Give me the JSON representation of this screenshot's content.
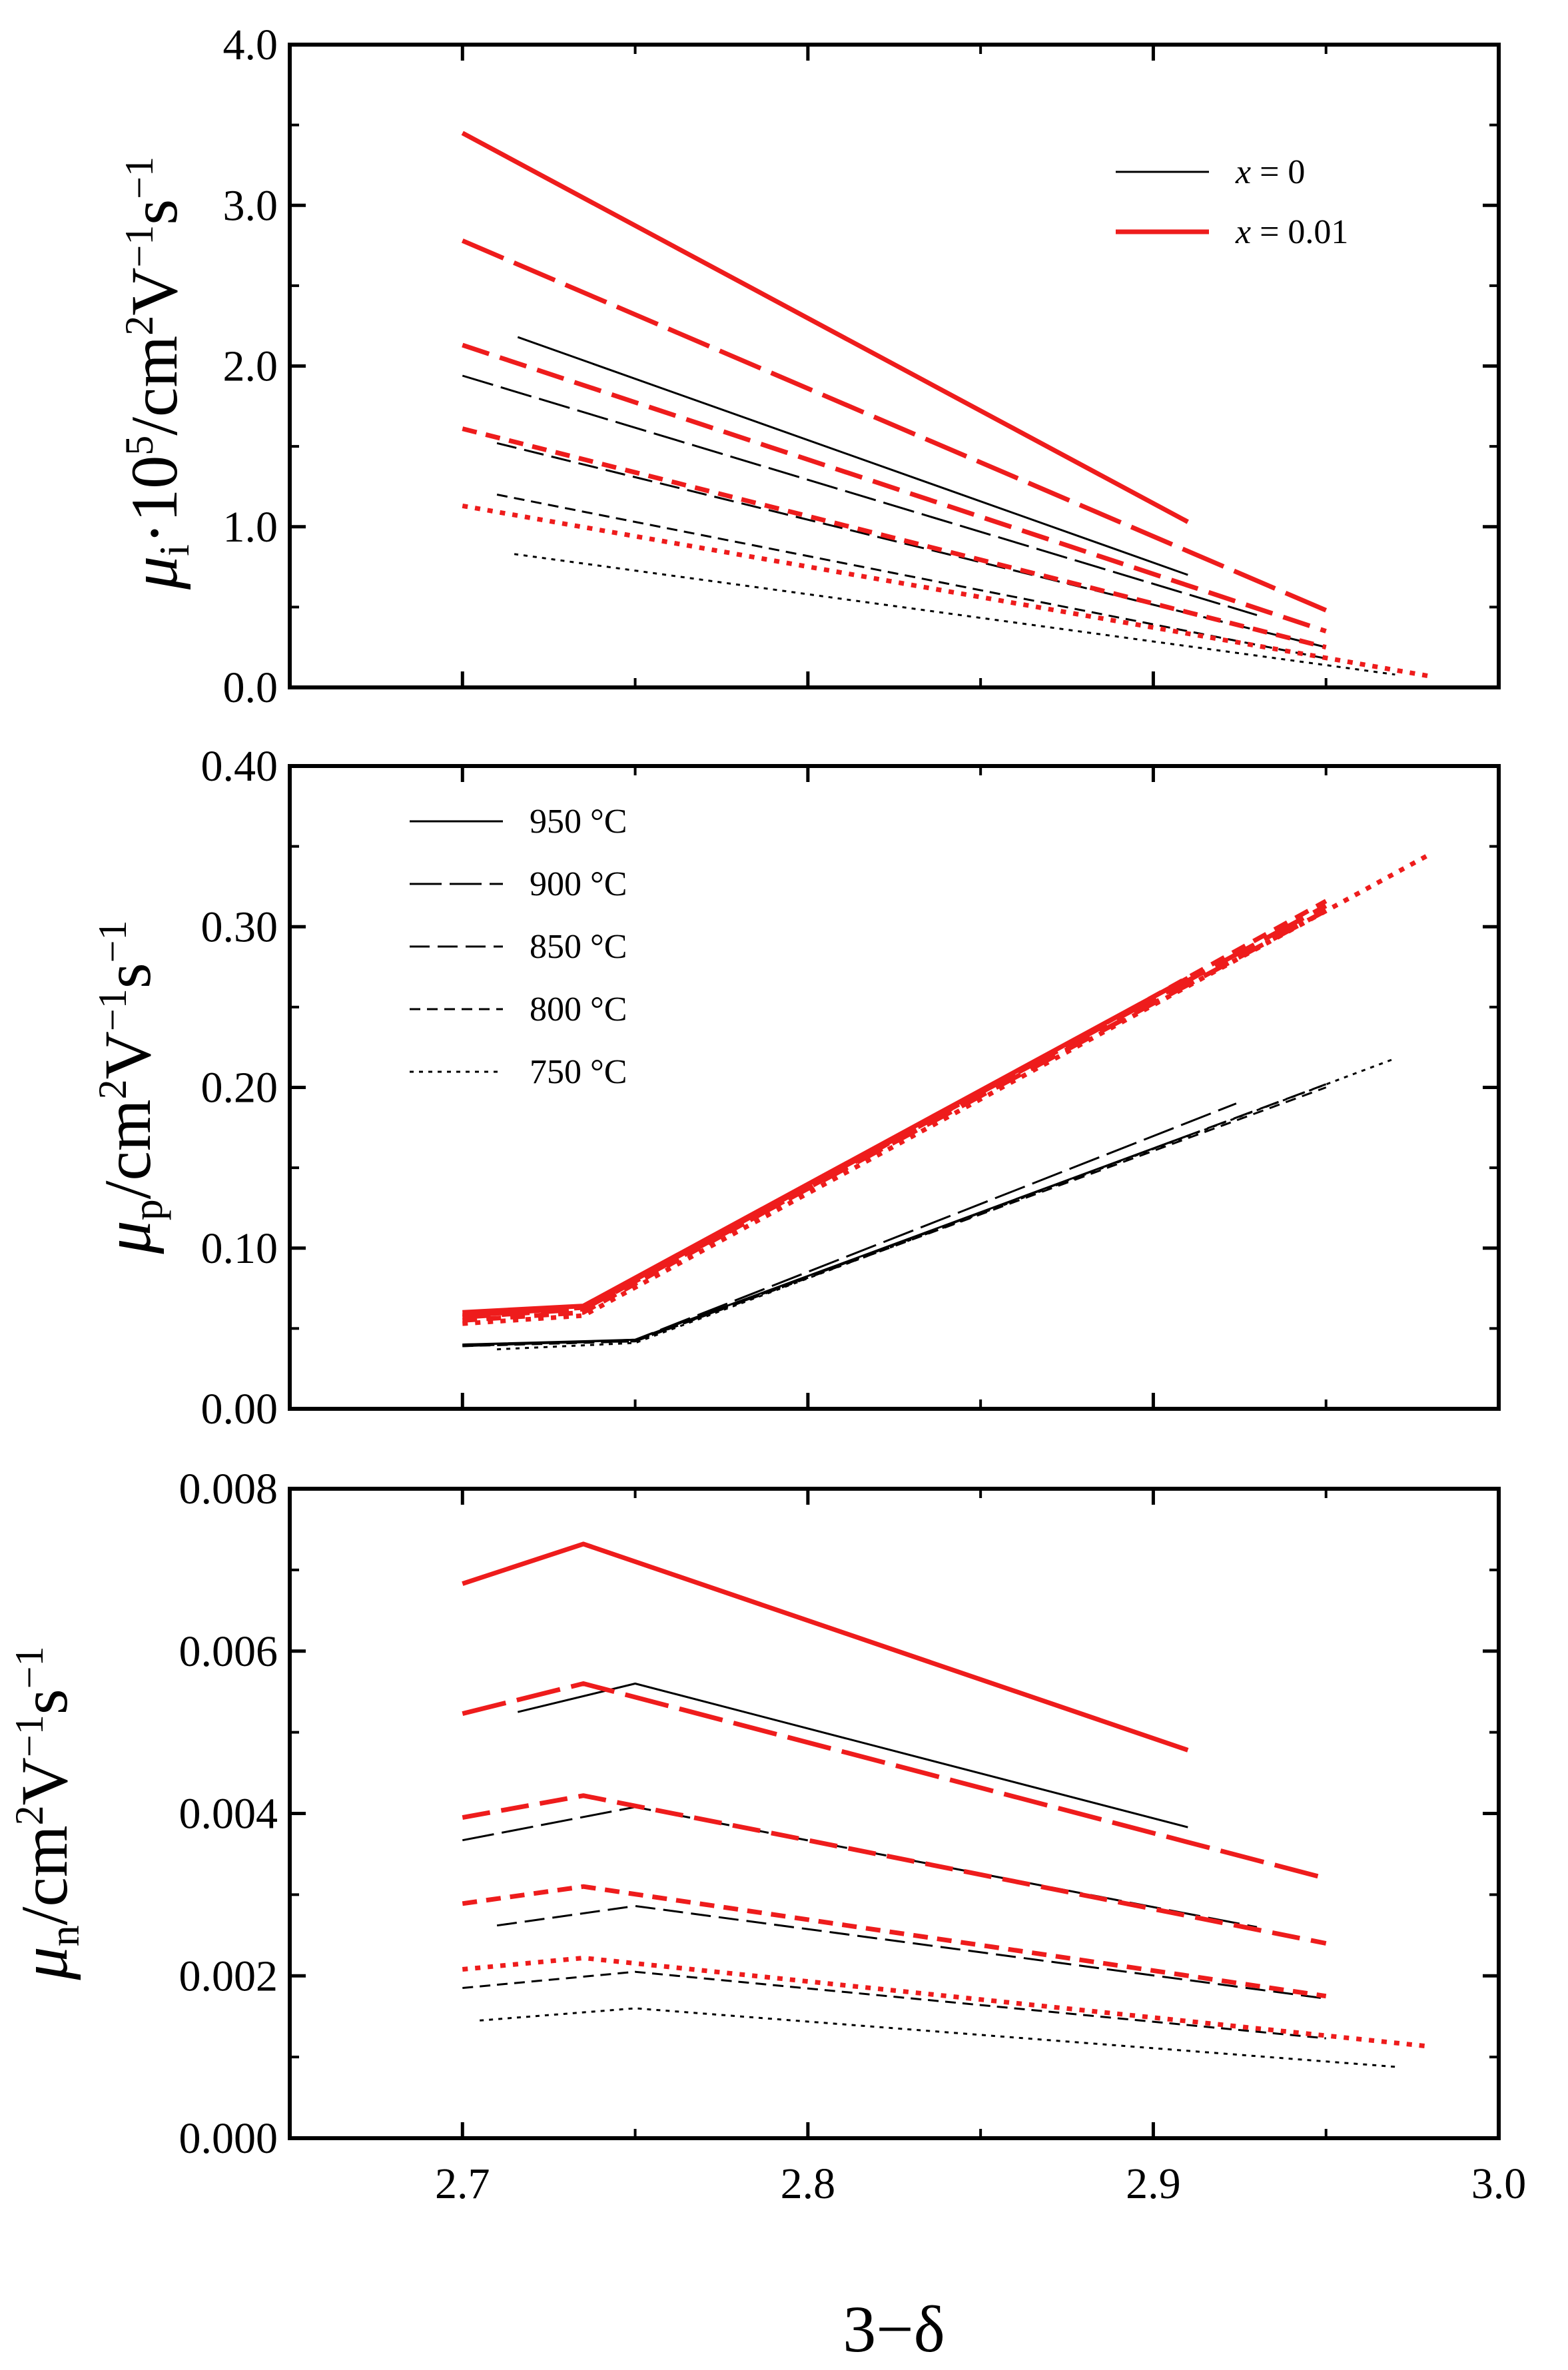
{
  "figure": {
    "x_title": "3−δ",
    "x_ticks": [
      "2.7",
      "2.8",
      "2.9",
      "3.0"
    ],
    "x_range": [
      2.65,
      3.0
    ]
  },
  "legend_composition": {
    "entries": [
      {
        "label_italic": "x",
        "label_rest": " = 0",
        "color": "#000000",
        "weight": "thin"
      },
      {
        "label_italic": "x",
        "label_rest": " = 0.01",
        "color": "#ee1c1c",
        "weight": "thick"
      }
    ]
  },
  "legend_temperature": {
    "entries": [
      {
        "label": "950 °C",
        "dash": "solid"
      },
      {
        "label": "900 °C",
        "dash": "longdash"
      },
      {
        "label": "850 °C",
        "dash": "dash"
      },
      {
        "label": "800 °C",
        "dash": "shortdash"
      },
      {
        "label": "750 °C",
        "dash": "dot"
      }
    ]
  },
  "chart_data": [
    {
      "type": "line",
      "name": "mu_i",
      "ylabel_symbol": "μ",
      "ylabel_sub": "i",
      "ylabel_mid": "·10",
      "ylabel_sup5": "5",
      "ylabel_unit": "/cm",
      "ylabel_sup2": "2",
      "ylabel_v": "V",
      "ylabel_sup_m1": "−1",
      "ylabel_s": "s",
      "ylabel_sup_m1b": "−1",
      "ylim": [
        0,
        4.0
      ],
      "y_ticks": [
        "0.0",
        "1.0",
        "2.0",
        "3.0",
        "4.0"
      ],
      "series": [
        {
          "name": "x=0, 950 °C",
          "x": [
            2.716,
            2.91
          ],
          "y": [
            2.18,
            0.7
          ]
        },
        {
          "name": "x=0, 900 °C",
          "x": [
            2.7,
            2.93
          ],
          "y": [
            1.94,
            0.45
          ]
        },
        {
          "name": "x=0, 850 °C",
          "x": [
            2.71,
            2.95
          ],
          "y": [
            1.52,
            0.25
          ]
        },
        {
          "name": "x=0, 800 °C",
          "x": [
            2.71,
            2.95
          ],
          "y": [
            1.2,
            0.18
          ]
        },
        {
          "name": "x=0, 750 °C",
          "x": [
            2.715,
            2.97
          ],
          "y": [
            0.83,
            0.08
          ]
        },
        {
          "name": "x=0.01, 950 °C",
          "x": [
            2.7,
            2.91
          ],
          "y": [
            3.45,
            1.03
          ]
        },
        {
          "name": "x=0.01, 900 °C",
          "x": [
            2.7,
            2.95
          ],
          "y": [
            2.78,
            0.48
          ]
        },
        {
          "name": "x=0.01, 850 °C",
          "x": [
            2.7,
            2.95
          ],
          "y": [
            2.13,
            0.35
          ]
        },
        {
          "name": "x=0.01, 800 °C",
          "x": [
            2.7,
            2.95
          ],
          "y": [
            1.61,
            0.25
          ]
        },
        {
          "name": "x=0.01, 750 °C",
          "x": [
            2.7,
            2.98
          ],
          "y": [
            1.13,
            0.07
          ]
        }
      ]
    },
    {
      "type": "line",
      "name": "mu_p",
      "ylabel_symbol": "μ",
      "ylabel_sub": "p",
      "ylabel_unit": "/cm",
      "ylabel_sup2": "2",
      "ylabel_v": "V",
      "ylabel_sup_m1": "−1",
      "ylabel_s": "s",
      "ylabel_sup_m1b": "−1",
      "ylim": [
        0,
        0.4
      ],
      "y_ticks": [
        "0.00",
        "0.10",
        "0.20",
        "0.30",
        "0.40"
      ],
      "series": [
        {
          "name": "x=0, 950 °C",
          "x": [
            2.7,
            2.75,
            2.91
          ],
          "y": [
            0.04,
            0.043,
            0.17
          ]
        },
        {
          "name": "x=0, 900 °C",
          "x": [
            2.7,
            2.75,
            2.924
          ],
          "y": [
            0.039,
            0.043,
            0.19
          ]
        },
        {
          "name": "x=0, 850 °C",
          "x": [
            2.7,
            2.75,
            2.95
          ],
          "y": [
            0.04,
            0.042,
            0.202
          ]
        },
        {
          "name": "x=0, 800 °C",
          "x": [
            2.7,
            2.75,
            2.95
          ],
          "y": [
            0.039,
            0.042,
            0.2
          ]
        },
        {
          "name": "x=0, 750 °C",
          "x": [
            2.71,
            2.75,
            2.97
          ],
          "y": [
            0.037,
            0.041,
            0.218
          ]
        },
        {
          "name": "x=0.01, 950 °C",
          "x": [
            2.7,
            2.735,
            2.91
          ],
          "y": [
            0.06,
            0.064,
            0.268
          ]
        },
        {
          "name": "x=0.01, 900 °C",
          "x": [
            2.7,
            2.735,
            2.95
          ],
          "y": [
            0.058,
            0.063,
            0.313
          ]
        },
        {
          "name": "x=0.01, 850 °C",
          "x": [
            2.7,
            2.735,
            2.95
          ],
          "y": [
            0.057,
            0.062,
            0.31
          ]
        },
        {
          "name": "x=0.01, 800 °C",
          "x": [
            2.7,
            2.735,
            2.95
          ],
          "y": [
            0.055,
            0.06,
            0.316
          ]
        },
        {
          "name": "x=0.01, 750 °C",
          "x": [
            2.7,
            2.735,
            2.98
          ],
          "y": [
            0.053,
            0.058,
            0.345
          ]
        }
      ]
    },
    {
      "type": "line",
      "name": "mu_n",
      "ylabel_symbol": "μ",
      "ylabel_sub": "n",
      "ylabel_unit": "/cm",
      "ylabel_sup2": "2",
      "ylabel_v": "V",
      "ylabel_sup_m1": "−1",
      "ylabel_s": "s",
      "ylabel_sup_m1b": "−1",
      "ylim": [
        0,
        0.008
      ],
      "y_ticks": [
        "0.000",
        "0.002",
        "0.004",
        "0.006",
        "0.008"
      ],
      "series": [
        {
          "name": "x=0, 950 °C",
          "x": [
            2.716,
            2.75,
            2.91
          ],
          "y": [
            0.00525,
            0.0056,
            0.00383
          ]
        },
        {
          "name": "x=0, 900 °C",
          "x": [
            2.7,
            2.75,
            2.93
          ],
          "y": [
            0.00367,
            0.00408,
            0.0026
          ]
        },
        {
          "name": "x=0, 850 °C",
          "x": [
            2.71,
            2.75,
            2.95
          ],
          "y": [
            0.00262,
            0.00286,
            0.00172
          ]
        },
        {
          "name": "x=0, 800 °C",
          "x": [
            2.7,
            2.75,
            2.95
          ],
          "y": [
            0.00185,
            0.00205,
            0.00123
          ]
        },
        {
          "name": "x=0, 750 °C",
          "x": [
            2.705,
            2.75,
            2.97
          ],
          "y": [
            0.00145,
            0.0016,
            0.00088
          ]
        },
        {
          "name": "x=0.01, 950 °C",
          "x": [
            2.7,
            2.735,
            2.91
          ],
          "y": [
            0.00683,
            0.00732,
            0.00478
          ]
        },
        {
          "name": "x=0.01, 900 °C",
          "x": [
            2.7,
            2.735,
            2.95
          ],
          "y": [
            0.00523,
            0.0056,
            0.0032
          ]
        },
        {
          "name": "x=0.01, 850 °C",
          "x": [
            2.7,
            2.735,
            2.95
          ],
          "y": [
            0.00395,
            0.00422,
            0.0024
          ]
        },
        {
          "name": "x=0.01, 800 °C",
          "x": [
            2.7,
            2.735,
            2.95
          ],
          "y": [
            0.00289,
            0.0031,
            0.00175
          ]
        },
        {
          "name": "x=0.01, 750 °C",
          "x": [
            2.7,
            2.735,
            2.98
          ],
          "y": [
            0.00208,
            0.00222,
            0.00113
          ]
        }
      ]
    }
  ]
}
